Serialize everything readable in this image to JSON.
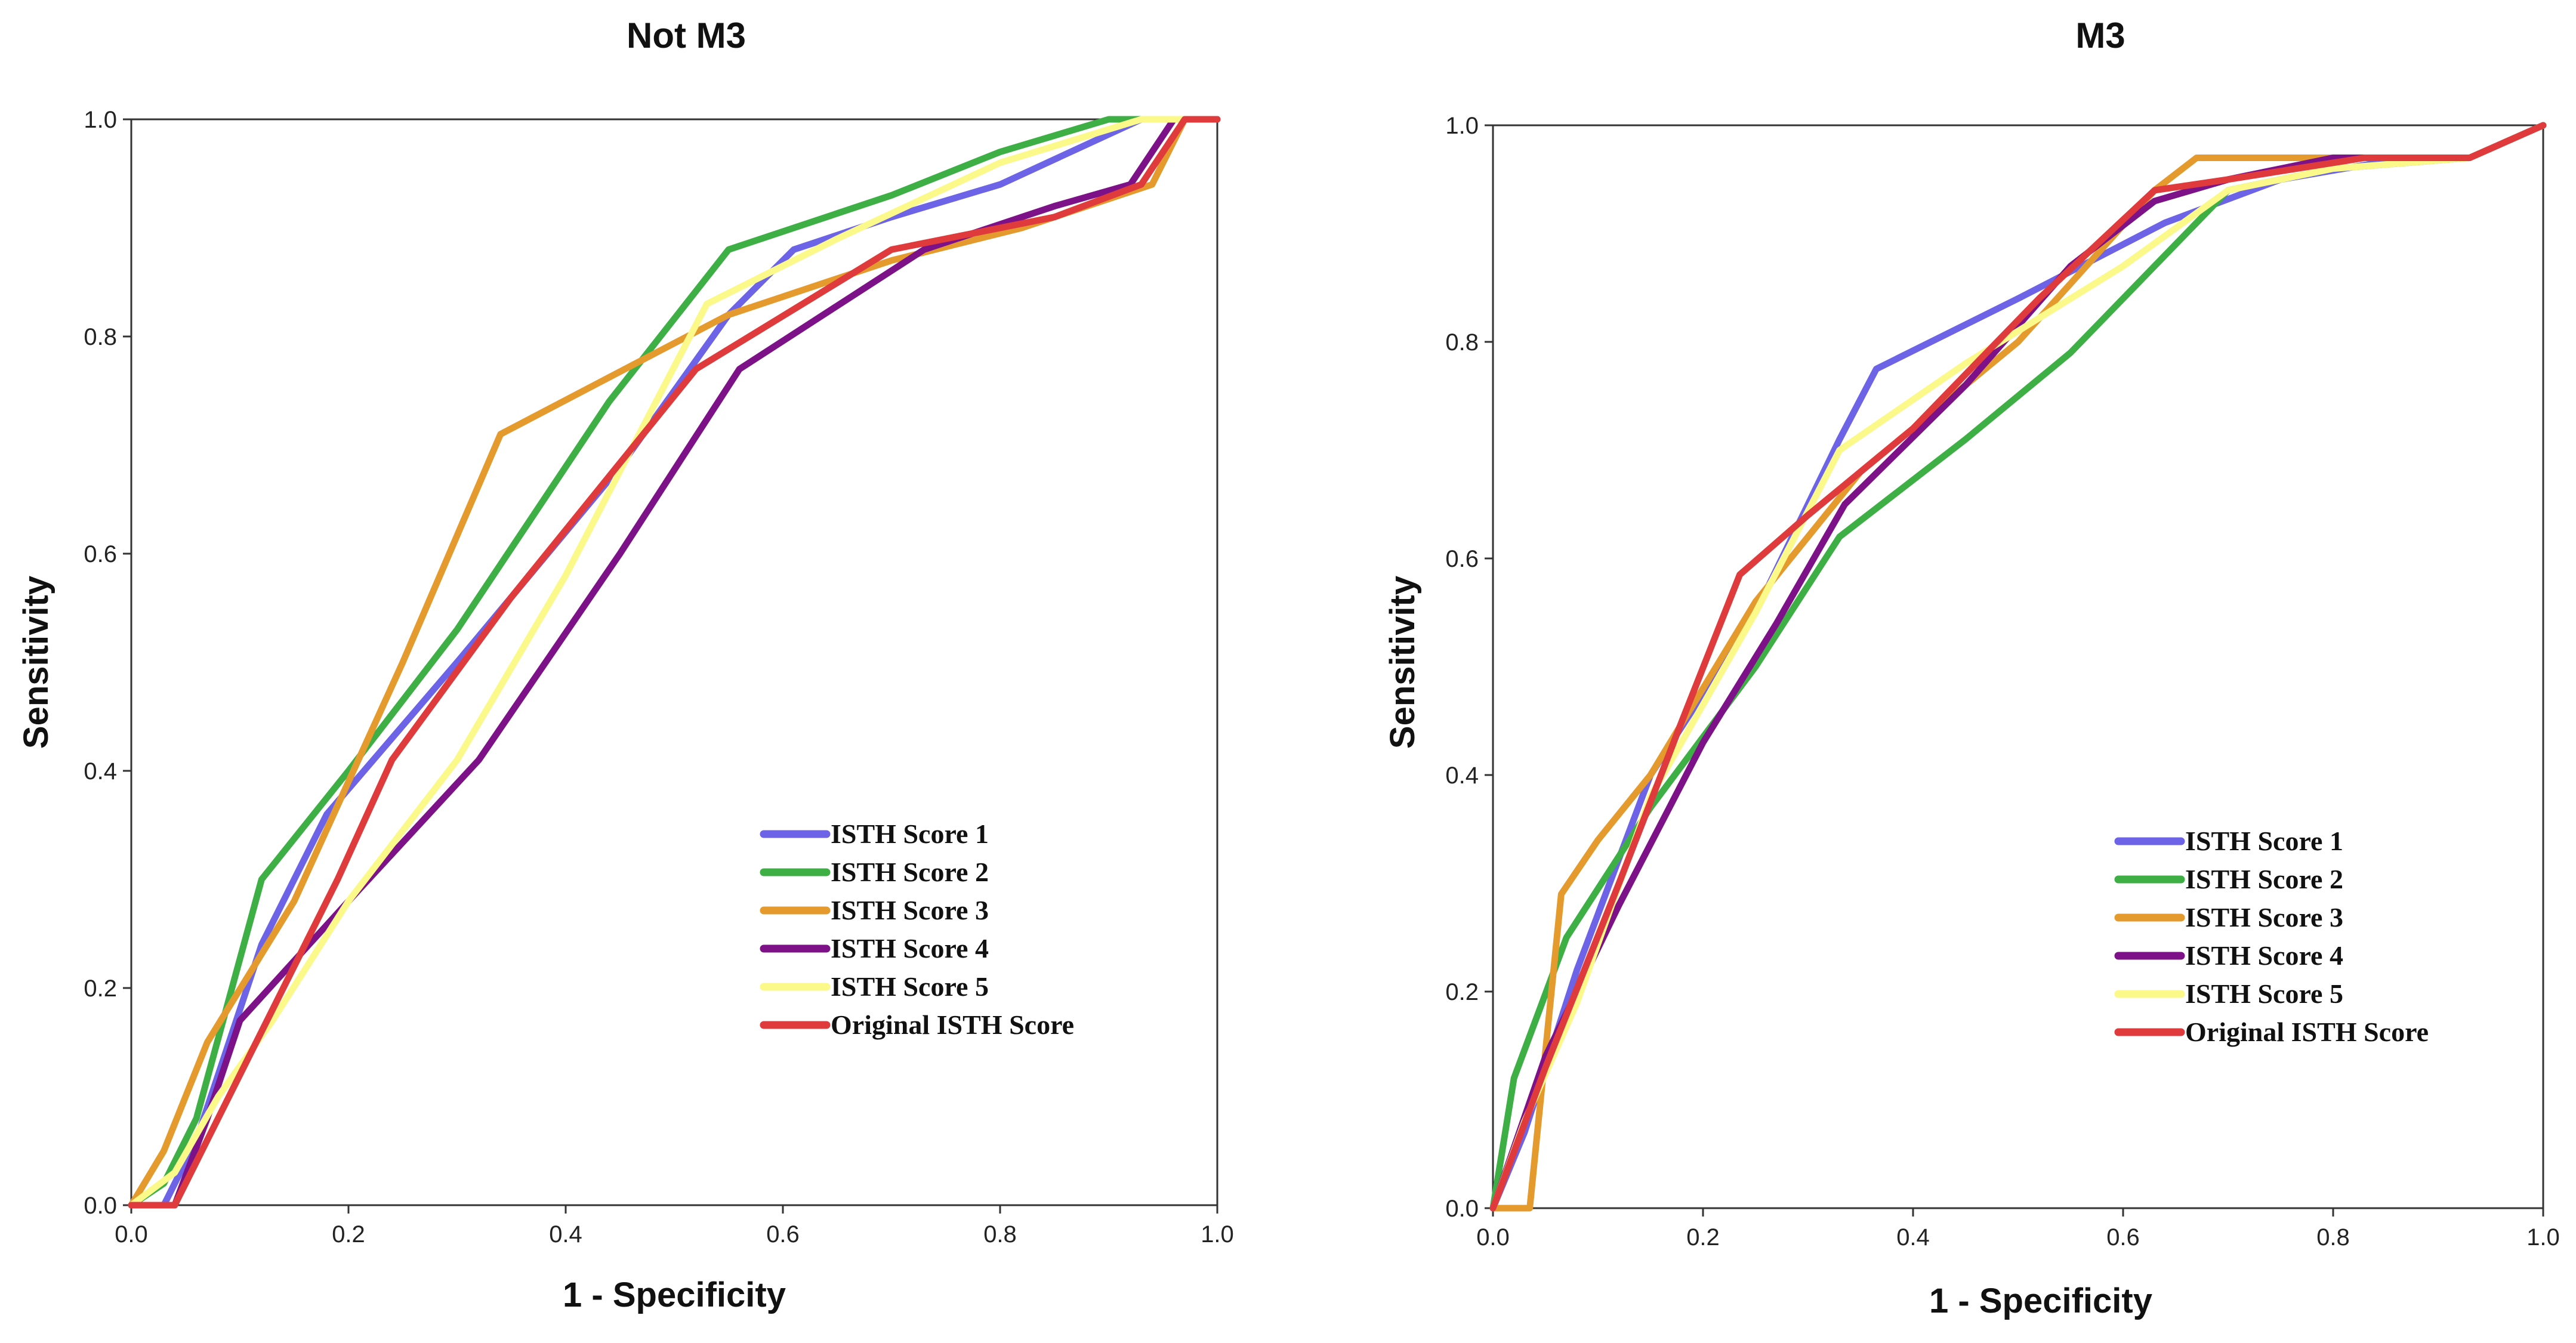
{
  "colors": {
    "ISTH Score 1": "#6c63e6",
    "ISTH Score 2": "#3daf45",
    "ISTH Score 3": "#e59a2e",
    "ISTH Score 4": "#7d1187",
    "ISTH Score 5": "#fbf98a",
    "Original ISTH Score": "#df3b3d"
  },
  "chart_data": [
    {
      "type": "line",
      "title": "Not M3",
      "xlabel": "1 - Specificity",
      "ylabel": "Sensitivity",
      "xlim": [
        0,
        1
      ],
      "ylim": [
        0,
        1
      ],
      "xticks": [
        "0.0",
        "0.2",
        "0.4",
        "0.6",
        "0.8",
        "1.0"
      ],
      "yticks": [
        "0.0",
        "0.2",
        "0.4",
        "0.6",
        "0.8",
        "1.0"
      ],
      "legend_position": "lower-right",
      "series": [
        {
          "name": "ISTH Score 1",
          "x": [
            0,
            0.03,
            0.06,
            0.12,
            0.18,
            0.3,
            0.45,
            0.55,
            0.61,
            0.7,
            0.8,
            0.93,
            1.0
          ],
          "y": [
            0,
            0,
            0.06,
            0.24,
            0.36,
            0.5,
            0.68,
            0.82,
            0.88,
            0.91,
            0.94,
            1.0,
            1.0
          ]
        },
        {
          "name": "ISTH Score 2",
          "x": [
            0,
            0.03,
            0.06,
            0.12,
            0.2,
            0.3,
            0.44,
            0.55,
            0.7,
            0.8,
            0.9,
            1.0
          ],
          "y": [
            0,
            0.02,
            0.08,
            0.3,
            0.4,
            0.53,
            0.74,
            0.88,
            0.93,
            0.97,
            1.0,
            1.0
          ]
        },
        {
          "name": "ISTH Score 3",
          "x": [
            0,
            0.03,
            0.07,
            0.15,
            0.25,
            0.34,
            0.55,
            0.7,
            0.82,
            0.94,
            0.97,
            1.0
          ],
          "y": [
            0,
            0.05,
            0.15,
            0.28,
            0.5,
            0.71,
            0.82,
            0.87,
            0.9,
            0.94,
            1.0,
            1.0
          ]
        },
        {
          "name": "ISTH Score 4",
          "x": [
            0,
            0.04,
            0.07,
            0.1,
            0.2,
            0.32,
            0.45,
            0.56,
            0.73,
            0.85,
            0.92,
            0.96,
            1.0
          ],
          "y": [
            0,
            0,
            0.08,
            0.17,
            0.28,
            0.41,
            0.6,
            0.77,
            0.88,
            0.92,
            0.94,
            1.0,
            1.0
          ]
        },
        {
          "name": "ISTH Score 5",
          "x": [
            0,
            0.04,
            0.08,
            0.13,
            0.2,
            0.3,
            0.4,
            0.53,
            0.65,
            0.8,
            0.93,
            1.0
          ],
          "y": [
            0,
            0.03,
            0.1,
            0.17,
            0.28,
            0.41,
            0.58,
            0.83,
            0.89,
            0.96,
            1.0,
            1.0
          ]
        },
        {
          "name": "Original ISTH Score",
          "x": [
            0,
            0.04,
            0.07,
            0.13,
            0.19,
            0.24,
            0.35,
            0.52,
            0.7,
            0.85,
            0.93,
            0.97,
            1.0
          ],
          "y": [
            0,
            0,
            0.06,
            0.18,
            0.3,
            0.41,
            0.56,
            0.77,
            0.88,
            0.91,
            0.94,
            1.0,
            1.0
          ]
        }
      ]
    },
    {
      "type": "line",
      "title": "M3",
      "xlabel": "1 - Specificity",
      "ylabel": "Sensitivity",
      "xlim": [
        0,
        1
      ],
      "ylim": [
        0,
        1
      ],
      "xticks": [
        "0.0",
        "0.2",
        "0.4",
        "0.6",
        "0.8",
        "1.0"
      ],
      "yticks": [
        "0.0",
        "0.2",
        "0.4",
        "0.6",
        "0.8",
        "1.0"
      ],
      "legend_position": "lower-right",
      "series": [
        {
          "name": "ISTH Score 1",
          "x": [
            0,
            0.03,
            0.08,
            0.15,
            0.25,
            0.33,
            0.365,
            0.5,
            0.64,
            0.75,
            0.87,
            0.93,
            1.0
          ],
          "y": [
            0,
            0.07,
            0.22,
            0.4,
            0.55,
            0.71,
            0.775,
            0.84,
            0.91,
            0.95,
            0.97,
            0.97,
            1.0
          ]
        },
        {
          "name": "ISTH Score 2",
          "x": [
            0,
            0.02,
            0.07,
            0.15,
            0.25,
            0.33,
            0.45,
            0.55,
            0.65,
            0.7,
            0.8,
            0.93,
            1.0
          ],
          "y": [
            0,
            0.12,
            0.25,
            0.37,
            0.5,
            0.62,
            0.71,
            0.79,
            0.89,
            0.94,
            0.96,
            0.97,
            1.0
          ]
        },
        {
          "name": "ISTH Score 3",
          "x": [
            0,
            0.035,
            0.065,
            0.1,
            0.15,
            0.25,
            0.35,
            0.5,
            0.63,
            0.67,
            0.8,
            0.93,
            1.0
          ],
          "y": [
            0,
            0,
            0.29,
            0.34,
            0.4,
            0.56,
            0.68,
            0.8,
            0.94,
            0.97,
            0.97,
            0.97,
            1.0
          ]
        },
        {
          "name": "ISTH Score 4",
          "x": [
            0,
            0.05,
            0.12,
            0.2,
            0.27,
            0.335,
            0.45,
            0.55,
            0.63,
            0.7,
            0.8,
            0.93,
            1.0
          ],
          "y": [
            0,
            0.14,
            0.28,
            0.43,
            0.54,
            0.65,
            0.76,
            0.87,
            0.93,
            0.95,
            0.97,
            0.97,
            1.0
          ]
        },
        {
          "name": "ISTH Score 5",
          "x": [
            0,
            0.03,
            0.08,
            0.15,
            0.25,
            0.33,
            0.45,
            0.6,
            0.7,
            0.8,
            0.93,
            1.0
          ],
          "y": [
            0,
            0.08,
            0.19,
            0.38,
            0.55,
            0.7,
            0.78,
            0.87,
            0.94,
            0.96,
            0.97,
            1.0
          ]
        },
        {
          "name": "Original ISTH Score",
          "x": [
            0,
            0.05,
            0.12,
            0.18,
            0.235,
            0.3,
            0.4,
            0.52,
            0.63,
            0.7,
            0.83,
            0.93,
            1.0
          ],
          "y": [
            0,
            0.13,
            0.3,
            0.45,
            0.585,
            0.64,
            0.72,
            0.84,
            0.94,
            0.95,
            0.97,
            0.97,
            1.0
          ]
        }
      ]
    }
  ]
}
